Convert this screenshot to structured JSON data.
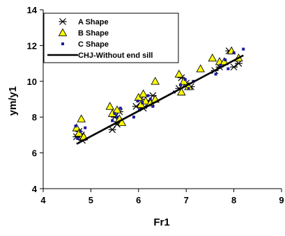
{
  "chart_data": {
    "type": "scatter",
    "xlabel": "Fr1",
    "ylabel": "ym/y1",
    "xlim": [
      4,
      9
    ],
    "ylim": [
      4,
      14
    ],
    "x_ticks": [
      "4",
      "5",
      "6",
      "7",
      "8",
      "9"
    ],
    "y_ticks": [
      "4",
      "6",
      "8",
      "10",
      "12",
      "14"
    ],
    "grid": false,
    "legend_position": "top-left",
    "series": [
      {
        "name": "A Shape",
        "marker": "asterisk",
        "color": "#000000",
        "points": [
          [
            4.7,
            6.9
          ],
          [
            4.75,
            7.2
          ],
          [
            4.8,
            7.0
          ],
          [
            4.82,
            6.7
          ],
          [
            5.45,
            7.3
          ],
          [
            5.5,
            8.0
          ],
          [
            5.55,
            7.6
          ],
          [
            5.6,
            8.3
          ],
          [
            5.95,
            8.6
          ],
          [
            6.05,
            9.0
          ],
          [
            6.1,
            8.5
          ],
          [
            6.2,
            8.9
          ],
          [
            6.3,
            9.2
          ],
          [
            6.85,
            9.6
          ],
          [
            6.9,
            10.2
          ],
          [
            7.0,
            9.9
          ],
          [
            7.1,
            9.7
          ],
          [
            7.6,
            10.6
          ],
          [
            7.7,
            10.8
          ],
          [
            7.9,
            11.7
          ],
          [
            8.0,
            10.8
          ],
          [
            8.1,
            11.0
          ]
        ]
      },
      {
        "name": "B Shape",
        "marker": "triangle",
        "color": "#ffff00",
        "points": [
          [
            4.7,
            7.4
          ],
          [
            4.75,
            7.1
          ],
          [
            4.8,
            7.9
          ],
          [
            4.85,
            6.9
          ],
          [
            5.4,
            8.6
          ],
          [
            5.45,
            8.2
          ],
          [
            5.55,
            8.4
          ],
          [
            5.6,
            7.9
          ],
          [
            5.65,
            7.7
          ],
          [
            6.0,
            9.1
          ],
          [
            6.05,
            8.7
          ],
          [
            6.1,
            9.3
          ],
          [
            6.15,
            8.9
          ],
          [
            6.25,
            8.8
          ],
          [
            6.35,
            10.0
          ],
          [
            6.35,
            9.0
          ],
          [
            6.85,
            10.4
          ],
          [
            6.9,
            9.4
          ],
          [
            6.95,
            10.0
          ],
          [
            7.05,
            9.7
          ],
          [
            7.3,
            10.7
          ],
          [
            7.55,
            11.3
          ],
          [
            7.7,
            11.1
          ],
          [
            7.8,
            11.1
          ],
          [
            7.95,
            11.7
          ],
          [
            8.1,
            11.3
          ]
        ]
      },
      {
        "name": "C Shape",
        "marker": "square",
        "color": "#1a1a9e",
        "points": [
          [
            4.68,
            7.5
          ],
          [
            4.72,
            6.8
          ],
          [
            4.78,
            7.2
          ],
          [
            4.88,
            7.4
          ],
          [
            5.45,
            7.8
          ],
          [
            5.5,
            8.2
          ],
          [
            5.55,
            8.0
          ],
          [
            5.62,
            8.5
          ],
          [
            5.9,
            8.0
          ],
          [
            5.98,
            8.9
          ],
          [
            6.02,
            8.4
          ],
          [
            6.08,
            8.8
          ],
          [
            6.2,
            9.2
          ],
          [
            6.25,
            9.0
          ],
          [
            6.3,
            8.6
          ],
          [
            6.75,
            9.4
          ],
          [
            6.88,
            9.8
          ],
          [
            6.98,
            10.1
          ],
          [
            7.05,
            9.6
          ],
          [
            7.15,
            10.0
          ],
          [
            7.62,
            10.4
          ],
          [
            7.72,
            10.9
          ],
          [
            7.82,
            11.2
          ],
          [
            7.88,
            10.7
          ],
          [
            8.0,
            11.6
          ],
          [
            8.2,
            11.8
          ]
        ]
      },
      {
        "name": "CHJ-Without end sill",
        "marker": "line",
        "color": "#000000",
        "points": [
          [
            4.7,
            6.5
          ],
          [
            8.2,
            11.45
          ]
        ]
      }
    ]
  }
}
